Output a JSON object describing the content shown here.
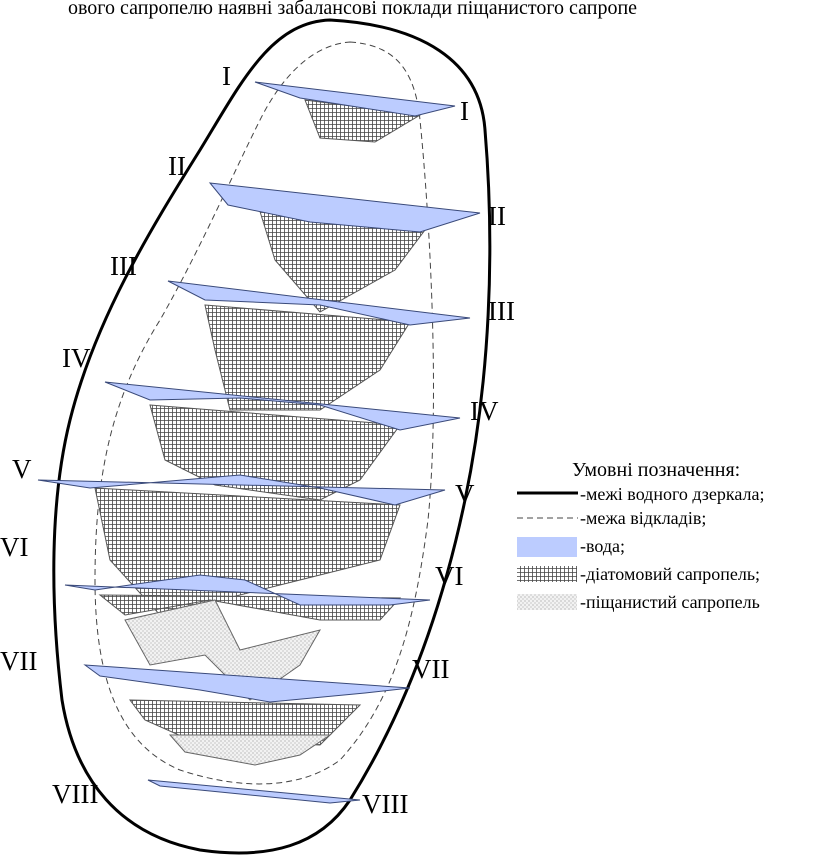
{
  "caption": "ового сапропелю наявні забалансові поклади піщанистого сапропе",
  "sections": [
    {
      "left": "I",
      "right": "I"
    },
    {
      "left": "II",
      "right": "II"
    },
    {
      "left": "III",
      "right": "III"
    },
    {
      "left": "IV",
      "right": "IV"
    },
    {
      "left": "V",
      "right": "V"
    },
    {
      "left": "VI",
      "right": "VI"
    },
    {
      "left": "VII",
      "right": "VII"
    },
    {
      "left": "VIII",
      "right": "VIII"
    }
  ],
  "legend": {
    "title": "Умовні позначення:",
    "items": [
      "-межі водного дзеркала;",
      "-межа відкладів;",
      "-вода;",
      "-діатомовий сапропель;",
      "-піщанистий сапропель"
    ]
  }
}
